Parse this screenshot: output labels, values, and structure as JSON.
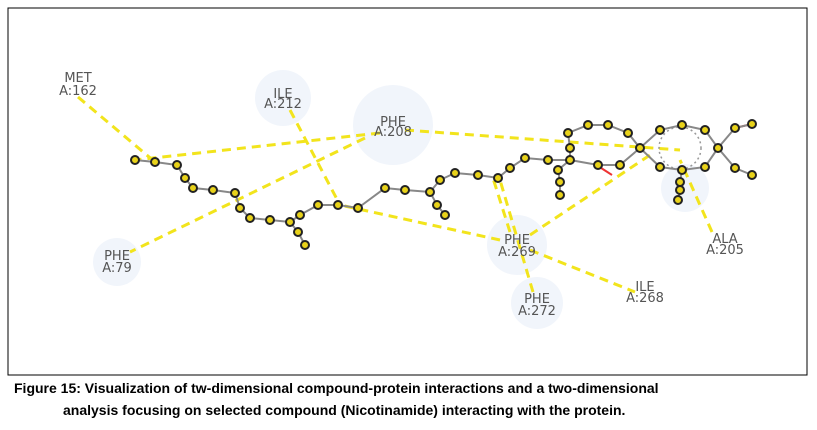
{
  "residues": [
    {
      "name": "MET",
      "id": "A:162"
    },
    {
      "name": "ILE",
      "id": "A:212"
    },
    {
      "name": "PHE",
      "id": "A:208"
    },
    {
      "name": "PHE",
      "id": "A:79"
    },
    {
      "name": "PHE",
      "id": "A:269"
    },
    {
      "name": "ALA",
      "id": "A:205"
    },
    {
      "name": "ILE",
      "id": "A:268"
    },
    {
      "name": "PHE",
      "id": "A:272"
    }
  ],
  "caption": {
    "line1": "Figure 15: Visualization of tw-dimensional compound-protein interactions and a two-dimensional",
    "line2": "analysis focusing on selected compound (Nicotinamide) interacting with the protein."
  }
}
